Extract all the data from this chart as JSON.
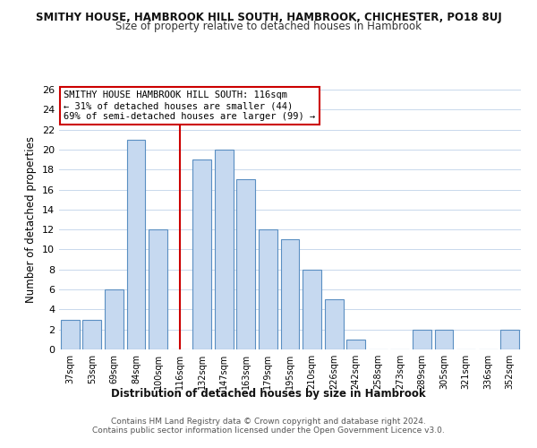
{
  "title": "SMITHY HOUSE, HAMBROOK HILL SOUTH, HAMBROOK, CHICHESTER, PO18 8UJ",
  "subtitle": "Size of property relative to detached houses in Hambrook",
  "xlabel": "Distribution of detached houses by size in Hambrook",
  "ylabel": "Number of detached properties",
  "categories": [
    "37sqm",
    "53sqm",
    "69sqm",
    "84sqm",
    "100sqm",
    "116sqm",
    "132sqm",
    "147sqm",
    "163sqm",
    "179sqm",
    "195sqm",
    "210sqm",
    "226sqm",
    "242sqm",
    "258sqm",
    "273sqm",
    "289sqm",
    "305sqm",
    "321sqm",
    "336sqm",
    "352sqm"
  ],
  "values": [
    3,
    3,
    6,
    21,
    12,
    0,
    19,
    20,
    17,
    12,
    11,
    8,
    5,
    1,
    0,
    0,
    2,
    2,
    0,
    0,
    2
  ],
  "bar_color": "#c6d9f0",
  "bar_edge_color": "#5a8fc2",
  "highlight_index": 5,
  "highlight_line_color": "#cc0000",
  "ylim": [
    0,
    26
  ],
  "yticks": [
    0,
    2,
    4,
    6,
    8,
    10,
    12,
    14,
    16,
    18,
    20,
    22,
    24,
    26
  ],
  "annotation_title": "SMITHY HOUSE HAMBROOK HILL SOUTH: 116sqm",
  "annotation_line1": "← 31% of detached houses are smaller (44)",
  "annotation_line2": "69% of semi-detached houses are larger (99) →",
  "annotation_box_color": "#ffffff",
  "annotation_box_edge": "#cc0000",
  "footer1": "Contains HM Land Registry data © Crown copyright and database right 2024.",
  "footer2": "Contains public sector information licensed under the Open Government Licence v3.0.",
  "background_color": "#ffffff",
  "grid_color": "#c8d8ec"
}
